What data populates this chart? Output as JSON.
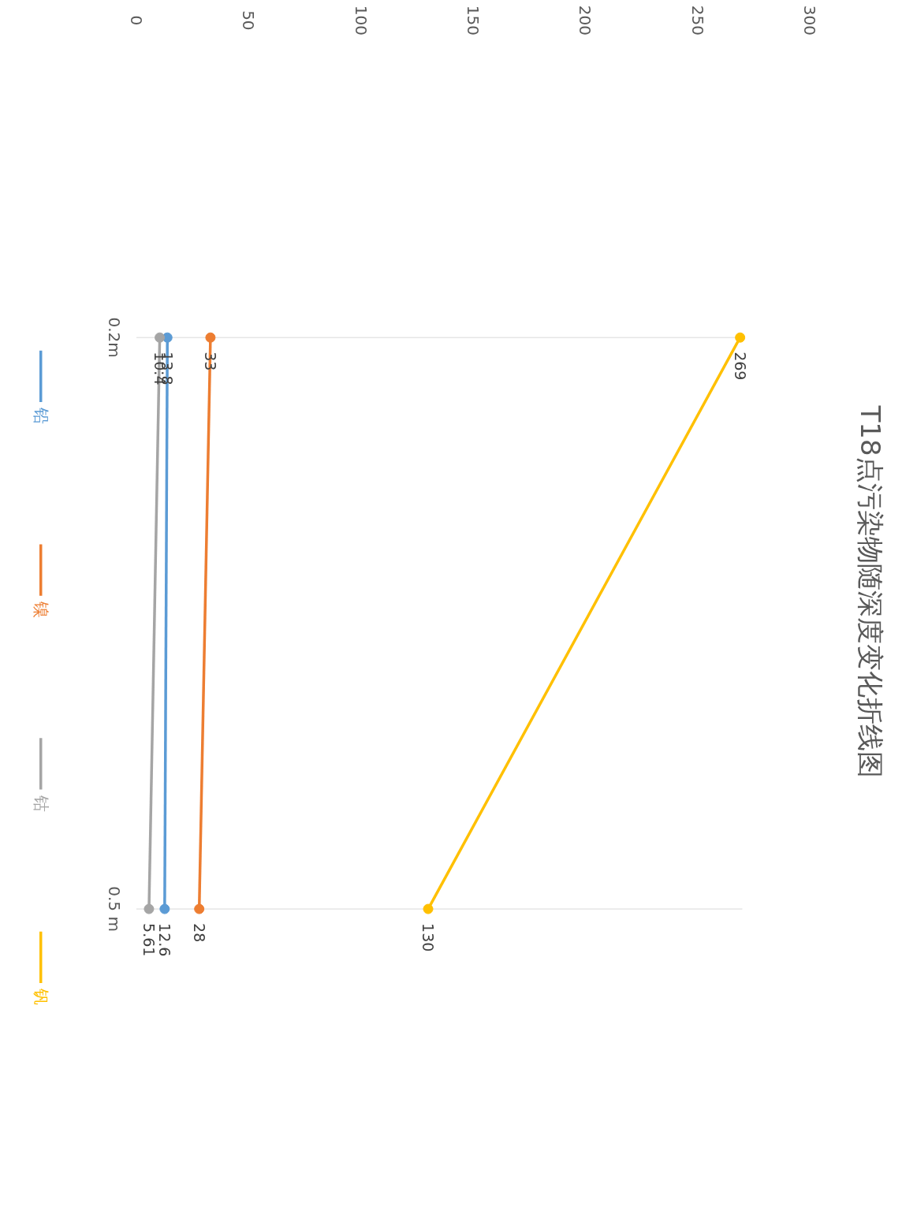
{
  "chart_data": {
    "type": "line",
    "title": "T18点污染物随深度变化折线图",
    "categories": [
      "0.2m",
      "0.5 m"
    ],
    "series": [
      {
        "name": "铅",
        "color": "#5b9bd5",
        "values": [
          13.8,
          12.6
        ]
      },
      {
        "name": "镍",
        "color": "#ed7d31",
        "values": [
          33,
          28
        ]
      },
      {
        "name": "钴",
        "color": "#a5a5a5",
        "values": [
          10.4,
          5.61
        ]
      },
      {
        "name": "钒",
        "color": "#ffc000",
        "values": [
          269,
          130
        ]
      }
    ],
    "orientation": "horizontal",
    "xlim": [
      0,
      300
    ],
    "xticks": [
      0,
      50,
      100,
      150,
      200,
      250,
      300
    ],
    "grid": "y",
    "legend": "bottom",
    "marker": "circle",
    "line_style": "solid",
    "data_labels": true
  }
}
